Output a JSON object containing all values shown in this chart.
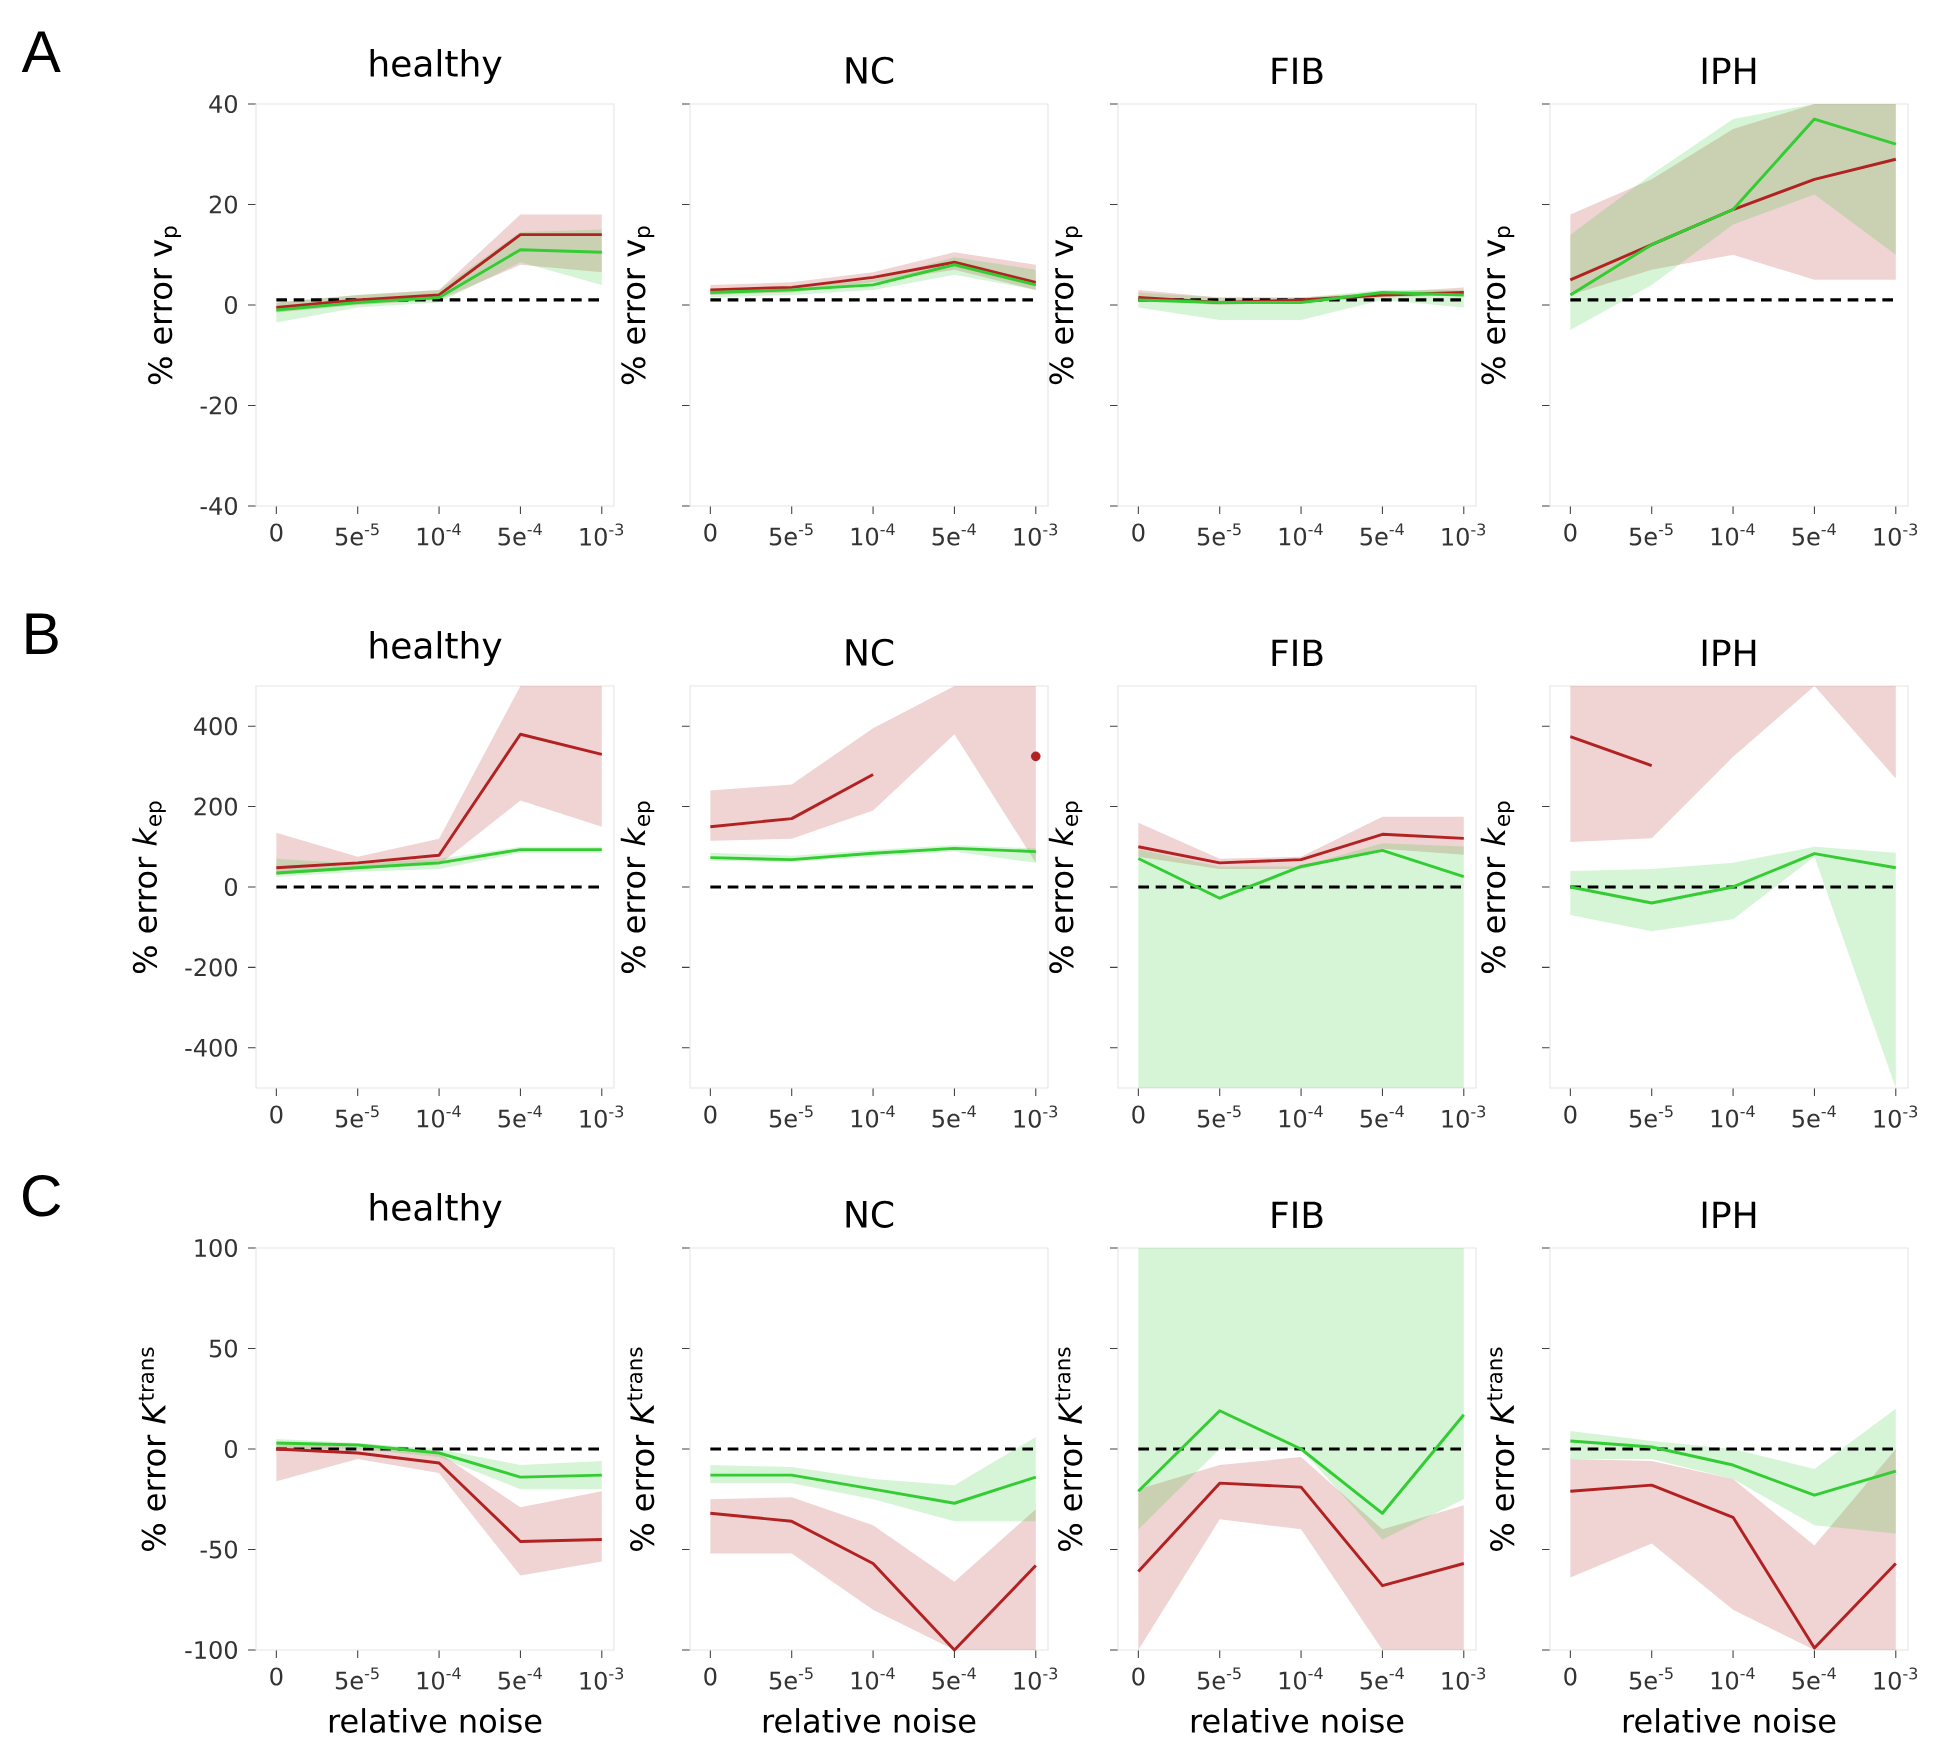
{
  "chart_data": [
    {
      "type": "line",
      "title": "healthy",
      "ylabel": "% error v$_{p}$",
      "annotations": [
        "A"
      ],
      "categories": [
        "0",
        "5e$^{-5}$",
        "10$^{-4}$",
        "5e$^{-4}$",
        "10$^{-3}$"
      ],
      "ylim": [
        -40,
        40
      ],
      "yticks": [
        -40,
        -20,
        0,
        20,
        40
      ],
      "ref_lines": [
        {
          "axis": "y",
          "value": 1,
          "line_style": "dashed",
          "color": "#000000"
        }
      ],
      "series": [
        {
          "color": "#b22222",
          "values": [
            -0.5,
            1,
            2,
            14,
            14
          ],
          "lower": [
            -1.5,
            0,
            1,
            8,
            6.5
          ],
          "upper": [
            0.5,
            2,
            3,
            18,
            18
          ]
        },
        {
          "color": "#33cc33",
          "values": [
            -1,
            0.5,
            1.5,
            11,
            10.5
          ],
          "lower": [
            -3.5,
            -0.5,
            0.5,
            8.5,
            4
          ],
          "upper": [
            0.5,
            2,
            3,
            14.5,
            15
          ]
        }
      ]
    },
    {
      "type": "line",
      "title": "NC",
      "ylabel": "% error v$_{p}$",
      "tick_labels": "x",
      "categories": [
        "0",
        "5e$^{-5}$",
        "10$^{-4}$",
        "5e$^{-4}$",
        "10$^{-3}$"
      ],
      "ylim": [
        -40,
        40
      ],
      "yticks": [
        -40,
        -20,
        0,
        20,
        40
      ],
      "ref_lines": [
        {
          "axis": "y",
          "value": 1,
          "line_style": "dashed",
          "color": "#000000"
        }
      ],
      "series": [
        {
          "color": "#b22222",
          "values": [
            3,
            3.5,
            5.5,
            8.5,
            4.5
          ],
          "lower": [
            2,
            2.5,
            4.5,
            7,
            3
          ],
          "upper": [
            4,
            4.5,
            6.5,
            10.5,
            8
          ]
        },
        {
          "color": "#33cc33",
          "values": [
            2.5,
            3,
            4,
            8,
            4
          ],
          "lower": [
            1.5,
            2,
            3,
            6,
            3
          ],
          "upper": [
            3,
            3.5,
            5,
            9.5,
            7
          ]
        }
      ]
    },
    {
      "type": "line",
      "title": "FIB",
      "ylabel": "% error v$_{p}$",
      "tick_labels": "x",
      "categories": [
        "0",
        "5e$^{-5}$",
        "10$^{-4}$",
        "5e$^{-4}$",
        "10$^{-3}$"
      ],
      "ylim": [
        -40,
        40
      ],
      "yticks": [
        -40,
        -20,
        0,
        20,
        40
      ],
      "ref_lines": [
        {
          "axis": "y",
          "value": 1,
          "line_style": "dashed",
          "color": "#000000"
        }
      ],
      "series": [
        {
          "color": "#b22222",
          "values": [
            1.5,
            0.5,
            1,
            2,
            2.5
          ],
          "lower": [
            1,
            0,
            0.5,
            1.5,
            2
          ],
          "upper": [
            3,
            1.5,
            1.5,
            2.5,
            3.5
          ]
        },
        {
          "color": "#33cc33",
          "values": [
            1,
            0.5,
            0.5,
            2.5,
            2
          ],
          "lower": [
            -0.5,
            -3,
            -3,
            1,
            -0.5
          ],
          "upper": [
            2.5,
            1.5,
            1.5,
            3,
            3
          ]
        }
      ]
    },
    {
      "type": "line",
      "title": "IPH",
      "ylabel": "% error v$_{p}$",
      "tick_labels": "x",
      "categories": [
        "0",
        "5e$^{-5}$",
        "10$^{-4}$",
        "5e$^{-4}$",
        "10$^{-3}$"
      ],
      "ylim": [
        -40,
        40
      ],
      "yticks": [
        -40,
        -20,
        0,
        20,
        40
      ],
      "ref_lines": [
        {
          "axis": "y",
          "value": 1,
          "line_style": "dashed",
          "color": "#000000"
        }
      ],
      "series": [
        {
          "color": "#b22222",
          "values": [
            5,
            12,
            19,
            25,
            29
          ],
          "lower": [
            2,
            7,
            10,
            5,
            5
          ],
          "upper": [
            18,
            25,
            35,
            40,
            40
          ]
        },
        {
          "color": "#33cc33",
          "values": [
            2,
            12,
            19,
            37,
            32
          ],
          "lower": [
            -5,
            4,
            16,
            22,
            10
          ],
          "upper": [
            14,
            26,
            37,
            40,
            40
          ]
        }
      ]
    },
    {
      "type": "line",
      "title": "healthy",
      "ylabel": "% error *k*$_{ep}$",
      "annotations": [
        "B"
      ],
      "categories": [
        "0",
        "5e$^{-5}$",
        "10$^{-4}$",
        "5e$^{-4}$",
        "10$^{-3}$"
      ],
      "ylim": [
        -500,
        500
      ],
      "yticks": [
        -400,
        -200,
        0,
        200,
        400
      ],
      "ref_lines": [
        {
          "axis": "y",
          "value": 0,
          "line_style": "dashed",
          "color": "#000000"
        }
      ],
      "series": [
        {
          "color": "#b22222",
          "values": [
            48,
            60,
            79,
            380,
            330
          ],
          "lower": [
            30,
            45,
            55,
            215,
            150
          ],
          "upper": [
            135,
            75,
            120,
            500,
            500
          ]
        },
        {
          "color": "#33cc33",
          "values": [
            35,
            48,
            60,
            93,
            93
          ],
          "lower": [
            25,
            38,
            45,
            85,
            85
          ],
          "upper": [
            70,
            58,
            70,
            100,
            100
          ]
        }
      ]
    },
    {
      "type": "line",
      "title": "NC",
      "ylabel": "% error *k*$_{ep}$",
      "tick_labels": "x",
      "categories": [
        "0",
        "5e$^{-5}$",
        "10$^{-4}$",
        "5e$^{-4}$",
        "10$^{-3}$"
      ],
      "ylim": [
        -500,
        500
      ],
      "yticks": [
        -400,
        -200,
        0,
        200,
        400
      ],
      "ref_lines": [
        {
          "axis": "y",
          "value": 0,
          "line_style": "dashed",
          "color": "#000000"
        }
      ],
      "series": [
        {
          "color": "#b22222",
          "values": [
            150,
            170,
            280,
            null,
            325
          ],
          "lower": [
            115,
            120,
            190,
            380,
            60
          ],
          "upper": [
            240,
            255,
            395,
            500,
            500
          ]
        },
        {
          "color": "#33cc33",
          "values": [
            73,
            68,
            84,
            96,
            88
          ],
          "lower": [
            65,
            62,
            75,
            88,
            60
          ],
          "upper": [
            85,
            78,
            92,
            104,
            96
          ]
        }
      ]
    },
    {
      "type": "line",
      "title": "FIB",
      "ylabel": "% error *k*$_{ep}$",
      "tick_labels": "x",
      "categories": [
        "0",
        "5e$^{-5}$",
        "10$^{-4}$",
        "5e$^{-4}$",
        "10$^{-3}$"
      ],
      "ylim": [
        -500,
        500
      ],
      "yticks": [
        -400,
        -200,
        0,
        200,
        400
      ],
      "ref_lines": [
        {
          "axis": "y",
          "value": 0,
          "line_style": "dashed",
          "color": "#000000"
        }
      ],
      "series": [
        {
          "color": "#b22222",
          "values": [
            100,
            60,
            68,
            131,
            121
          ],
          "lower": [
            75,
            45,
            45,
            95,
            80
          ],
          "upper": [
            160,
            70,
            75,
            175,
            175
          ]
        },
        {
          "color": "#33cc33",
          "values": [
            71,
            -28,
            51,
            91,
            26
          ],
          "lower": [
            -500,
            -500,
            -500,
            -500,
            -500
          ],
          "upper": [
            93,
            51,
            51,
            109,
            101
          ]
        }
      ]
    },
    {
      "type": "line",
      "title": "IPH",
      "ylabel": "% error *k*$_{ep}$",
      "tick_labels": "x",
      "categories": [
        "0",
        "5e$^{-5}$",
        "10$^{-4}$",
        "5e$^{-4}$",
        "10$^{-3}$"
      ],
      "ylim": [
        -500,
        500
      ],
      "yticks": [
        -400,
        -200,
        0,
        200,
        400
      ],
      "ref_lines": [
        {
          "axis": "y",
          "value": 0,
          "line_style": "dashed",
          "color": "#000000"
        }
      ],
      "series": [
        {
          "color": "#b22222",
          "values": [
            374,
            302,
            null,
            null,
            null
          ],
          "lower": [
            112,
            121,
            324,
            500,
            270
          ],
          "upper": [
            500,
            500,
            500,
            500,
            500
          ]
        },
        {
          "color": "#33cc33",
          "values": [
            0,
            -40,
            0,
            83,
            48
          ],
          "lower": [
            -70,
            -110,
            -80,
            75,
            -500
          ],
          "upper": [
            40,
            45,
            60,
            100,
            85
          ]
        }
      ]
    },
    {
      "type": "line",
      "title": "healthy",
      "xlabel": "relative noise",
      "ylabel": "% error *K*$^{trans}$",
      "annotations": [
        "C"
      ],
      "categories": [
        "0",
        "5e$^{-5}$",
        "10$^{-4}$",
        "5e$^{-4}$",
        "10$^{-3}$"
      ],
      "ylim": [
        -100,
        100
      ],
      "yticks": [
        -100,
        -50,
        0,
        50,
        100
      ],
      "ref_lines": [
        {
          "axis": "y",
          "value": 0,
          "line_style": "dashed",
          "color": "#000000"
        }
      ],
      "series": [
        {
          "color": "#b22222",
          "values": [
            0,
            -2,
            -7,
            -46,
            -45
          ],
          "lower": [
            -16,
            -5,
            -12,
            -63,
            -56
          ],
          "upper": [
            3,
            1,
            -2,
            -29,
            -21
          ]
        },
        {
          "color": "#33cc33",
          "values": [
            3,
            2,
            -2,
            -14,
            -13
          ],
          "lower": [
            0,
            0,
            -4,
            -20,
            -20
          ],
          "upper": [
            5,
            3,
            0,
            -8,
            -6
          ]
        }
      ]
    },
    {
      "type": "line",
      "title": "NC",
      "xlabel": "relative noise",
      "ylabel": "% error *K*$^{trans}$",
      "tick_labels": "x",
      "categories": [
        "0",
        "5e$^{-5}$",
        "10$^{-4}$",
        "5e$^{-4}$",
        "10$^{-3}$"
      ],
      "ylim": [
        -100,
        100
      ],
      "yticks": [
        -100,
        -50,
        0,
        50,
        100
      ],
      "ref_lines": [
        {
          "axis": "y",
          "value": 0,
          "line_style": "dashed",
          "color": "#000000"
        }
      ],
      "series": [
        {
          "color": "#b22222",
          "values": [
            -32,
            -36,
            -57,
            -100,
            -58
          ],
          "lower": [
            -52,
            -52,
            -80,
            -100,
            -100
          ],
          "upper": [
            -25,
            -24,
            -38,
            -66,
            -30
          ]
        },
        {
          "color": "#33cc33",
          "values": [
            -13,
            -13,
            -20,
            -27,
            -14
          ],
          "lower": [
            -17,
            -17,
            -25,
            -36,
            -36
          ],
          "upper": [
            -8,
            -9,
            -15,
            -18,
            6
          ]
        }
      ]
    },
    {
      "type": "line",
      "title": "FIB",
      "xlabel": "relative noise",
      "ylabel": "% error *K*$^{trans}$",
      "tick_labels": "x",
      "categories": [
        "0",
        "5e$^{-5}$",
        "10$^{-4}$",
        "5e$^{-4}$",
        "10$^{-3}$"
      ],
      "ylim": [
        -100,
        100
      ],
      "yticks": [
        -100,
        -50,
        0,
        50,
        100
      ],
      "ref_lines": [
        {
          "axis": "y",
          "value": 0,
          "line_style": "dashed",
          "color": "#000000"
        }
      ],
      "series": [
        {
          "color": "#b22222",
          "values": [
            -61,
            -17,
            -19,
            -68,
            -57
          ],
          "lower": [
            -100,
            -35,
            -40,
            -100,
            -100
          ],
          "upper": [
            -20,
            -8,
            -4,
            -40,
            -28
          ]
        },
        {
          "color": "#33cc33",
          "values": [
            -21,
            19,
            0,
            -32,
            17
          ],
          "lower": [
            -40,
            0,
            0,
            -45,
            -25
          ],
          "upper": [
            100,
            100,
            100,
            100,
            100
          ]
        }
      ]
    },
    {
      "type": "line",
      "title": "IPH",
      "xlabel": "relative noise",
      "ylabel": "% error *K*$^{trans}$",
      "tick_labels": "x",
      "categories": [
        "0",
        "5e$^{-5}$",
        "10$^{-4}$",
        "5e$^{-4}$",
        "10$^{-3}$"
      ],
      "ylim": [
        -100,
        100
      ],
      "yticks": [
        -100,
        -50,
        0,
        50,
        100
      ],
      "ref_lines": [
        {
          "axis": "y",
          "value": 0,
          "line_style": "dashed",
          "color": "#000000"
        }
      ],
      "series": [
        {
          "color": "#b22222",
          "values": [
            -21,
            -18,
            -34,
            -99,
            -57
          ],
          "lower": [
            -64,
            -47,
            -80,
            -100,
            -100
          ],
          "upper": [
            -5,
            -6,
            -15,
            -48,
            0
          ]
        },
        {
          "color": "#33cc33",
          "values": [
            4,
            1,
            -8,
            -23,
            -11
          ],
          "lower": [
            -5,
            -5,
            -15,
            -38,
            -42
          ],
          "upper": [
            9,
            4,
            0,
            -10,
            20
          ]
        }
      ]
    }
  ]
}
